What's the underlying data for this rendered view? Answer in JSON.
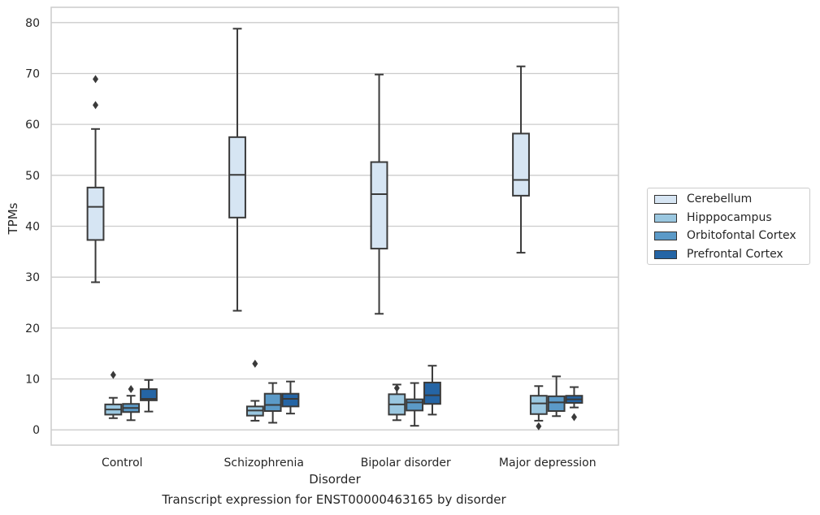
{
  "caption": "Transcript expression for ENST00000463165 by disorder",
  "chart_data": {
    "type": "box",
    "xlabel": "Disorder",
    "ylabel": "TPMs",
    "ylim": [
      -3,
      83
    ],
    "yticks": [
      0,
      10,
      20,
      30,
      40,
      50,
      60,
      70,
      80
    ],
    "grid": "horizontal",
    "legend_position": "right",
    "categories": [
      "Control",
      "Schizophrenia",
      "Bipolar disorder",
      "Major depression"
    ],
    "series": [
      {
        "name": "Cerebellum",
        "color": "#d6e5f3",
        "boxes": [
          {
            "whislo": 29.0,
            "q1": 37.3,
            "med": 43.8,
            "q3": 47.6,
            "whishi": 59.1,
            "fliers": [
              63.8,
              68.9
            ]
          },
          {
            "whislo": 23.4,
            "q1": 41.7,
            "med": 50.1,
            "q3": 57.5,
            "whishi": 78.8,
            "fliers": []
          },
          {
            "whislo": 22.8,
            "q1": 35.6,
            "med": 46.3,
            "q3": 52.6,
            "whishi": 69.8,
            "fliers": []
          },
          {
            "whislo": 34.8,
            "q1": 46.0,
            "med": 49.1,
            "q3": 58.2,
            "whishi": 71.4,
            "fliers": []
          }
        ]
      },
      {
        "name": "Hipppocampus",
        "color": "#9ac7e0",
        "boxes": [
          {
            "whislo": 2.3,
            "q1": 3.0,
            "med": 4.0,
            "q3": 5.0,
            "whishi": 6.3,
            "fliers": [
              10.8
            ]
          },
          {
            "whislo": 1.8,
            "q1": 2.8,
            "med": 3.8,
            "q3": 4.6,
            "whishi": 5.7,
            "fliers": [
              13.0
            ]
          },
          {
            "whislo": 1.9,
            "q1": 3.0,
            "med": 5.0,
            "q3": 7.0,
            "whishi": 8.9,
            "fliers": [
              8.2
            ]
          },
          {
            "whislo": 1.8,
            "q1": 3.1,
            "med": 5.2,
            "q3": 6.7,
            "whishi": 8.6,
            "fliers": [
              0.7
            ]
          }
        ]
      },
      {
        "name": "Orbitofontal Cortex",
        "color": "#5b9ac8",
        "boxes": [
          {
            "whislo": 1.9,
            "q1": 3.5,
            "med": 4.3,
            "q3": 5.1,
            "whishi": 6.7,
            "fliers": [
              8.0
            ]
          },
          {
            "whislo": 1.4,
            "q1": 3.7,
            "med": 4.9,
            "q3": 7.1,
            "whishi": 9.2,
            "fliers": []
          },
          {
            "whislo": 0.8,
            "q1": 3.8,
            "med": 5.4,
            "q3": 6.0,
            "whishi": 9.2,
            "fliers": []
          },
          {
            "whislo": 2.7,
            "q1": 3.7,
            "med": 5.4,
            "q3": 6.6,
            "whishi": 10.5,
            "fliers": []
          }
        ]
      },
      {
        "name": "Prefrontal Cortex",
        "color": "#2565a5",
        "boxes": [
          {
            "whislo": 3.6,
            "q1": 5.8,
            "med": 6.1,
            "q3": 8.0,
            "whishi": 9.8,
            "fliers": []
          },
          {
            "whislo": 3.2,
            "q1": 4.6,
            "med": 6.1,
            "q3": 7.1,
            "whishi": 9.5,
            "fliers": []
          },
          {
            "whislo": 3.0,
            "q1": 5.1,
            "med": 6.8,
            "q3": 9.3,
            "whishi": 12.6,
            "fliers": []
          },
          {
            "whislo": 4.4,
            "q1": 5.3,
            "med": 6.0,
            "q3": 6.7,
            "whishi": 8.4,
            "fliers": [
              2.5
            ]
          }
        ]
      }
    ]
  }
}
